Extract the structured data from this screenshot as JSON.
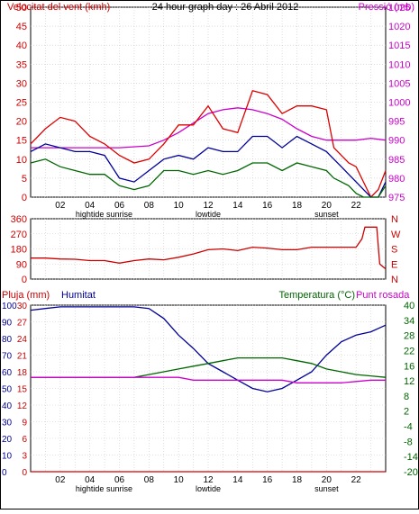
{
  "chart_data": [
    {
      "type": "line",
      "title": "24 hour graph day : 26 Abril 2012",
      "left_axis_label": "Velocitat del vent (kmh)",
      "right_axis_label": "Pressió (mb)",
      "left_ylim": [
        0,
        50
      ],
      "left_ticks": [
        "0",
        "5",
        "10",
        "15",
        "20",
        "25",
        "30",
        "35",
        "40",
        "45",
        "50"
      ],
      "right_ylim": [
        975,
        1025
      ],
      "right_ticks": [
        "975",
        "980",
        "985",
        "990",
        "995",
        "1000",
        "1005",
        "1010",
        "1015",
        "1020",
        "1025"
      ],
      "x_ticks": [
        "02",
        "04",
        "06",
        "08",
        "10",
        "12",
        "14",
        "16",
        "18",
        "20",
        "22"
      ],
      "x_sub_labels": [
        "hightide",
        "sunrise",
        "lowtide",
        "sunset"
      ],
      "xlim": [
        0,
        24
      ],
      "grid": true,
      "series": [
        {
          "axis": "right",
          "color": "#cc00cc",
          "x": [
            0,
            3,
            6,
            8,
            9,
            10,
            11,
            12,
            13,
            14,
            15,
            16,
            17,
            18,
            19,
            20,
            21,
            22,
            23,
            24
          ],
          "values": [
            988,
            988,
            988,
            988.5,
            990,
            992,
            994.5,
            997,
            998,
            998.5,
            998,
            997,
            995.5,
            993,
            991,
            990,
            990,
            990,
            990.5,
            990
          ]
        },
        {
          "axis": "left",
          "color": "#dd0000",
          "x": [
            0,
            1,
            2,
            3,
            4,
            5,
            6,
            7,
            8,
            9,
            10,
            11,
            12,
            13,
            14,
            15,
            16,
            17,
            18,
            19,
            20,
            20.5,
            21,
            21.5,
            22,
            22.5,
            23,
            23.5,
            24
          ],
          "values": [
            14,
            18,
            21,
            20,
            16,
            14,
            11,
            9,
            10,
            14,
            19,
            19,
            24,
            18,
            17,
            28,
            27,
            22,
            24,
            24,
            23,
            13,
            11,
            9,
            8,
            4,
            0,
            2,
            7
          ]
        },
        {
          "axis": "left",
          "color": "#000099",
          "x": [
            0,
            1,
            2,
            3,
            4,
            5,
            6,
            7,
            8,
            9,
            10,
            11,
            12,
            13,
            14,
            15,
            16,
            17,
            18,
            19,
            20,
            20.5,
            21,
            21.5,
            22,
            22.5,
            23,
            23.5,
            24
          ],
          "values": [
            12,
            14,
            13,
            12,
            12,
            11,
            5,
            4,
            7,
            10,
            11,
            10,
            13,
            12,
            12,
            16,
            16,
            13,
            16,
            14,
            12,
            10,
            8,
            6,
            4,
            2,
            0,
            0,
            4
          ]
        },
        {
          "axis": "left",
          "color": "#006600",
          "x": [
            0,
            1,
            2,
            3,
            4,
            5,
            6,
            7,
            8,
            9,
            10,
            11,
            12,
            13,
            14,
            15,
            16,
            17,
            18,
            19,
            20,
            20.5,
            21,
            21.5,
            22,
            22.5,
            23,
            23.5,
            24
          ],
          "values": [
            9,
            10,
            8,
            7,
            6,
            6,
            3,
            2,
            3,
            7,
            7,
            6,
            7,
            6,
            7,
            9,
            9,
            7,
            9,
            8,
            7,
            5,
            4,
            3,
            1,
            0,
            0,
            0,
            3
          ]
        }
      ]
    },
    {
      "type": "line",
      "left_ylim": [
        0,
        360
      ],
      "left_ticks": [
        "0",
        "90",
        "180",
        "270",
        "360"
      ],
      "right_labels": [
        "N",
        "W",
        "S",
        "E",
        "N"
      ],
      "xlim": [
        0,
        24
      ],
      "grid": true,
      "series": [
        {
          "axis": "left",
          "color": "#cc0000",
          "x": [
            0,
            1,
            2,
            3,
            4,
            5,
            6,
            7,
            8,
            9,
            10,
            11,
            12,
            13,
            14,
            15,
            16,
            17,
            18,
            19,
            20,
            21,
            22,
            22.4,
            22.6,
            23,
            23.4,
            23.6,
            24
          ],
          "values": [
            125,
            125,
            120,
            118,
            110,
            110,
            95,
            110,
            120,
            115,
            130,
            150,
            175,
            180,
            170,
            190,
            185,
            175,
            175,
            190,
            190,
            190,
            190,
            240,
            310,
            310,
            310,
            90,
            60
          ]
        }
      ]
    },
    {
      "type": "line",
      "left_axis_label": "Pluja (mm)",
      "left_axis_label_2": "Humitat",
      "right_axis_label": "Temperatura (°C)",
      "right_axis_label_2": "Punt rosada",
      "rain_ylim": [
        0,
        30
      ],
      "rain_ticks": [
        "0",
        "3",
        "6",
        "9",
        "12",
        "15",
        "18",
        "21",
        "24",
        "27",
        "30"
      ],
      "humidity_ylim": [
        0,
        100
      ],
      "humidity_ticks": [
        "0",
        "10",
        "20",
        "30",
        "40",
        "50",
        "60",
        "70",
        "80",
        "90",
        "100"
      ],
      "temp_ylim": [
        -20,
        40
      ],
      "temp_ticks": [
        "-20",
        "-14",
        "-8",
        "-4",
        "2",
        "8",
        "12",
        "16",
        "22",
        "28",
        "34",
        "40"
      ],
      "x_ticks": [
        "02",
        "04",
        "06",
        "08",
        "10",
        "12",
        "14",
        "16",
        "18",
        "20",
        "22"
      ],
      "x_sub_labels": [
        "hightide",
        "sunrise",
        "lowtide",
        "sunset"
      ],
      "xlim": [
        0,
        24
      ],
      "grid": true,
      "series": [
        {
          "axis": "humidity",
          "color": "#000099",
          "x": [
            0,
            1,
            2,
            4,
            6,
            7,
            8,
            9,
            10,
            11,
            12,
            13,
            14,
            15,
            16,
            17,
            18,
            19,
            20,
            21,
            22,
            23,
            24
          ],
          "values": [
            97,
            98,
            99,
            99,
            99,
            99,
            98,
            92,
            82,
            74,
            65,
            60,
            55,
            50,
            48,
            50,
            55,
            60,
            70,
            78,
            82,
            84,
            88
          ]
        },
        {
          "axis": "temp",
          "color": "#006600",
          "x": [
            0,
            2,
            4,
            6,
            7,
            8,
            9,
            10,
            11,
            12,
            13,
            14,
            15,
            16,
            17,
            18,
            19,
            20,
            21,
            22,
            23,
            24
          ],
          "values": [
            14,
            14,
            14,
            14,
            14,
            15,
            16,
            17,
            18,
            19,
            20,
            21,
            21,
            21,
            21,
            20,
            19,
            17,
            16,
            15,
            14.5,
            14
          ]
        },
        {
          "axis": "temp",
          "color": "#cc00cc",
          "x": [
            0,
            2,
            4,
            6,
            7,
            8,
            9,
            10,
            11,
            12,
            13,
            14,
            15,
            16,
            17,
            18,
            19,
            20,
            21,
            22,
            23,
            24
          ],
          "values": [
            14,
            14,
            14,
            14,
            14,
            14,
            14,
            14,
            13,
            13,
            13,
            13,
            13,
            13,
            13,
            12,
            12,
            12,
            12,
            12.5,
            13,
            13
          ]
        },
        {
          "axis": "rain",
          "color": "#cc0000",
          "x": [
            0,
            24
          ],
          "values": [
            0,
            0
          ]
        }
      ]
    }
  ]
}
